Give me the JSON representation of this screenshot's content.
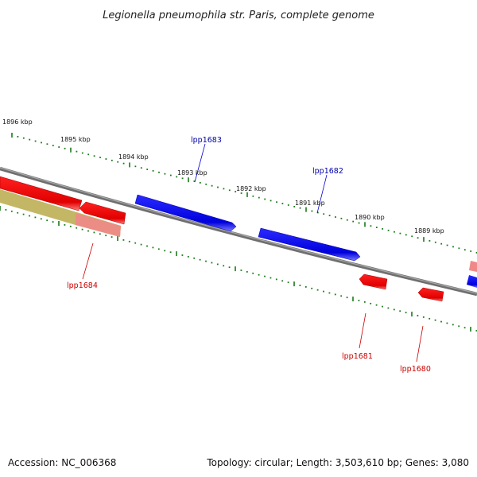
{
  "title": "Legionella pneumophila str. Paris, complete genome",
  "colors": {
    "forward_gene": "#0000ee",
    "reverse_gene": "#ee0000",
    "ticks": "#1a7a1a",
    "backbone": "#777777",
    "forward_label": "#0000aa",
    "reverse_label": "#cc0000"
  },
  "kbp_labels": [
    "1896 kbp",
    "1895 kbp",
    "1894 kbp",
    "1893 kbp",
    "1892 kbp",
    "1891 kbp",
    "1890 kbp",
    "1889 kbp"
  ],
  "genes": {
    "forward": [
      {
        "label": "lpp1683"
      },
      {
        "label": "lpp1682"
      }
    ],
    "reverse": [
      {
        "label": "lpp1684"
      },
      {
        "label": "lpp1681"
      },
      {
        "label": "lpp1680"
      }
    ]
  },
  "footer": {
    "accession": "Accession: NC_006368",
    "summary": "Topology: circular; Length: 3,503,610 bp; Genes: 3,080"
  }
}
